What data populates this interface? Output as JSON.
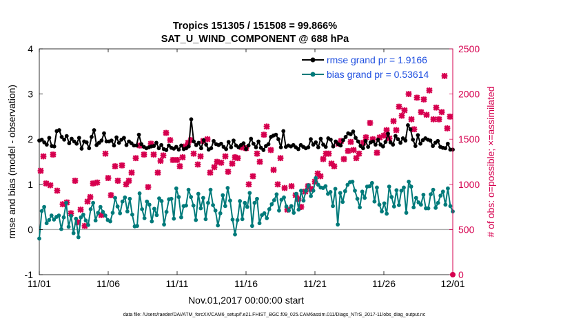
{
  "chart_data": {
    "type": "line",
    "title": [
      "Tropics 151305 / 151508 = 99.866%",
      "SAT_U_WIND_COMPONENT @ 688 hPa"
    ],
    "xlabel": "Nov.01,2017 00:00:00 start",
    "ylabel_left": "rmse and bias (model - observation)",
    "ylabel_right": "# of obs: o=possible; ×=assimilated",
    "footer": "data file: /Users/raeder/DAI/ATM_forcXX/CAM6_setup/f.e21.FHIST_BGC.f09_025.CAM6assim.011/Diags_NTrS_2017-11/obs_diag_output.nc",
    "x_range": [
      0,
      30
    ],
    "x_ticks": [
      0,
      5,
      10,
      15,
      20,
      25,
      30
    ],
    "x_tick_labels": [
      "11/01",
      "11/06",
      "11/11",
      "11/16",
      "11/21",
      "11/26",
      "12/01"
    ],
    "ylim_left": [
      -1,
      4
    ],
    "y_ticks_left": [
      -1,
      0,
      1,
      2,
      3,
      4
    ],
    "ylim_right": [
      0,
      2500
    ],
    "y_ticks_right": [
      0,
      500,
      1000,
      1500,
      2000,
      2500
    ],
    "zero_line": 0,
    "colors": {
      "rmse": "#000000",
      "bias": "#007a7a",
      "obs": "#d6004f",
      "axis_right": "#d6004f",
      "zero_line": "#aaaaaa"
    },
    "legend": [
      {
        "label": "rmse grand pr = 1.9166",
        "series": "rmse"
      },
      {
        "label": "bias grand pr = 0.53614",
        "series": "bias"
      }
    ],
    "series": [
      {
        "name": "rmse",
        "values": [
          1.97,
          1.99,
          1.93,
          1.88,
          2.03,
          1.85,
          1.84,
          2.18,
          2.2,
          2.05,
          1.99,
          2.07,
          1.91,
          2.01,
          1.95,
          1.9,
          2.03,
          1.79,
          1.95,
          1.93,
          1.8,
          2.05,
          2.2,
          1.87,
          1.92,
          1.97,
          2.13,
          1.95,
          1.95,
          1.97,
          1.86,
          2.04,
          1.92,
          1.99,
          2.03,
          1.87,
          1.95,
          1.91,
          1.86,
          1.86,
          2.1,
          1.89,
          1.83,
          1.8,
          1.82,
          1.84,
          1.85,
          1.92,
          1.8,
          1.87,
          1.78,
          1.76,
          1.86,
          1.81,
          1.79,
          1.83,
          1.77,
          1.86,
          1.78,
          1.8,
          1.84,
          2.44,
          1.95,
          1.87,
          1.92,
          1.8,
          1.98,
          1.88,
          1.77,
          1.8,
          1.96,
          1.89,
          1.87,
          1.9,
          1.83,
          1.78,
          1.94,
          1.82,
          1.97,
          1.86,
          1.82,
          1.87,
          1.91,
          1.78,
          1.86,
          2.01,
          1.9,
          1.82,
          1.95,
          1.81,
          1.76,
          1.85,
          1.89,
          2.05,
          2.08,
          2.1,
          2.0,
          1.82,
          2.18,
          1.83,
          1.86,
          1.84,
          1.87,
          1.82,
          1.78,
          1.87,
          1.83,
          1.8,
          1.82,
          2.0,
          1.88,
          1.93,
          1.82,
          2.01,
          1.88,
          1.83,
          2.02,
          1.99,
          1.84,
          1.95,
          1.89,
          1.86,
          1.98,
          2.05,
          2.13,
          2.11,
          2.17,
          2.03,
          1.95,
          1.85,
          1.8,
          1.96,
          1.83,
          1.93,
          1.95,
          1.88,
          1.99,
          1.88,
          1.84,
          1.94,
          2.12,
          1.93,
          1.88,
          2.07,
          2.0,
          1.92,
          2.02,
          1.97,
          2.31,
          2.22,
          1.99,
          1.85,
          2.09,
          1.9,
          1.98,
          2.02,
          1.99,
          1.97,
          1.85,
          1.92,
          1.96,
          1.83,
          1.81,
          1.8,
          1.9,
          1.77,
          1.77
        ]
      },
      {
        "name": "bias",
        "values": [
          -0.2,
          0.41,
          0.5,
          0.14,
          0.21,
          0.31,
          0.22,
          0.28,
          0.31,
          0.01,
          0.27,
          0.59,
          0.06,
          0.3,
          -0.08,
          0.24,
          -0.17,
          0.27,
          0.33,
          0.2,
          0.1,
          0.45,
          0.59,
          0.2,
          0.37,
          0.5,
          0.39,
          0.31,
          0.21,
          0.18,
          0.37,
          0.7,
          0.51,
          0.36,
          0.62,
          0.71,
          0.4,
          0.68,
          0.33,
          0.07,
          0.08,
          0.8,
          0.45,
          0.25,
          0.62,
          0.55,
          0.18,
          0.46,
          0.32,
          0.69,
          0.63,
          0.11,
          0.39,
          0.67,
          0.68,
          0.24,
          0.91,
          0.72,
          0.27,
          0.52,
          0.53,
          0.88,
          0.72,
          0.53,
          0.21,
          0.79,
          0.47,
          0.7,
          0.23,
          0.59,
          0.88,
          0.54,
          0.42,
          0.09,
          0.36,
          0.76,
          0.52,
          0.92,
          0.64,
          0.22,
          -0.11,
          0.21,
          0.63,
          0.23,
          0.59,
          0.5,
          0.81,
          0.08,
          0.59,
          0.68,
          0.14,
          0.32,
          0.36,
          0.25,
          0.45,
          0.56,
          0.65,
          0.78,
          0.42,
          0.66,
          0.71,
          0.51,
          0.42,
          0.52,
          0.37,
          0.79,
          0.44,
          0.86,
          0.64,
          0.86,
          0.98,
          0.74,
          0.86,
          1.14,
          0.99,
          0.93,
          0.92,
          0.96,
          0.79,
          0.83,
          0.52,
          0.9,
          0.11,
          0.81,
          0.61,
          0.85,
          0.99,
          1.05,
          1.06,
          0.86,
          0.68,
          0.49,
          0.84,
          0.7,
          0.95,
          0.96,
          1.03,
          0.62,
          0.93,
          0.55,
          0.4,
          0.58,
          0.35,
          0.95,
          0.72,
          0.51,
          0.87,
          0.54,
          0.86,
          0.93,
          0.37,
          1.06,
          0.95,
          0.49,
          0.7,
          0.6,
          0.55,
          0.77,
          0.47,
          0.47,
          0.78,
          0.88,
          0.48,
          0.59,
          0.75,
          0.84,
          0.55,
          0.91,
          0.52,
          0.4
        ]
      }
    ],
    "obs_assimilated": {
      "x": [
        0.1,
        0.3,
        0.5,
        0.8,
        1.0,
        1.3,
        1.7,
        2.0,
        2.3,
        2.6,
        2.8,
        3.0,
        3.3,
        3.5,
        3.7,
        3.9,
        4.2,
        4.5,
        4.8,
        5.0,
        5.2,
        5.5,
        5.7,
        6.0,
        6.3,
        6.5,
        6.7,
        7.0,
        7.3,
        7.6,
        7.9,
        8.1,
        8.3,
        8.6,
        8.8,
        9.0,
        9.2,
        9.5,
        9.7,
        10.0,
        10.2,
        10.4,
        10.6,
        10.8,
        11.0,
        11.2,
        11.5,
        11.7,
        11.9,
        12.2,
        12.4,
        12.7,
        12.9,
        13.2,
        13.5,
        13.7,
        14.0,
        14.2,
        14.4,
        14.7,
        15.0,
        15.2,
        15.5,
        15.8,
        16.0,
        16.3,
        16.5,
        16.8,
        17.0,
        17.3,
        17.5,
        17.8,
        18.0,
        18.3,
        18.6,
        18.8,
        19.0,
        19.3,
        19.5,
        19.7,
        20.0,
        20.2,
        20.4,
        20.6,
        20.8,
        21.0,
        21.2,
        21.4,
        21.7,
        21.9,
        22.1,
        22.4,
        22.6,
        22.8,
        23.0,
        23.2,
        23.5,
        23.7,
        24.0,
        24.2,
        24.5,
        24.7,
        25.0,
        25.2,
        25.4,
        25.7,
        25.9,
        26.1,
        26.3,
        26.5,
        26.8,
        27.0,
        27.2,
        27.4,
        27.7,
        27.9,
        28.1,
        28.3,
        28.6,
        28.8,
        29.0,
        29.2,
        29.4,
        29.6,
        29.8,
        30.0
      ],
      "values": [
        1150,
        1310,
        1010,
        990,
        1330,
        930,
        780,
        800,
        680,
        1040,
        580,
        720,
        540,
        810,
        860,
        1010,
        1020,
        660,
        1340,
        1070,
        880,
        1200,
        1040,
        1210,
        1000,
        1040,
        1130,
        1290,
        1430,
        1330,
        970,
        1450,
        1330,
        1130,
        1260,
        1320,
        1570,
        1490,
        1270,
        1270,
        1200,
        1300,
        1420,
        1460,
        1490,
        1340,
        1220,
        1310,
        1480,
        1500,
        1130,
        1190,
        1250,
        1240,
        1310,
        1140,
        1230,
        1300,
        1290,
        1410,
        1400,
        1000,
        1090,
        1340,
        1250,
        1550,
        1640,
        1380,
        1160,
        1000,
        1290,
        960,
        720,
        980,
        880,
        840,
        750,
        920,
        980,
        950,
        1030,
        1120,
        1090,
        1280,
        1340,
        1340,
        1230,
        1200,
        1450,
        1480,
        1280,
        1370,
        1470,
        1380,
        1290,
        1340,
        1460,
        1520,
        1680,
        1500,
        1350,
        1520,
        1540,
        1600,
        1510,
        1700,
        1600,
        1860,
        1760,
        1820,
        2000,
        1720,
        1610,
        1960,
        1800,
        1940,
        1770,
        2040,
        1720,
        1850,
        1720,
        1800,
        2200,
        1620,
        1750,
        0
      ]
    }
  }
}
